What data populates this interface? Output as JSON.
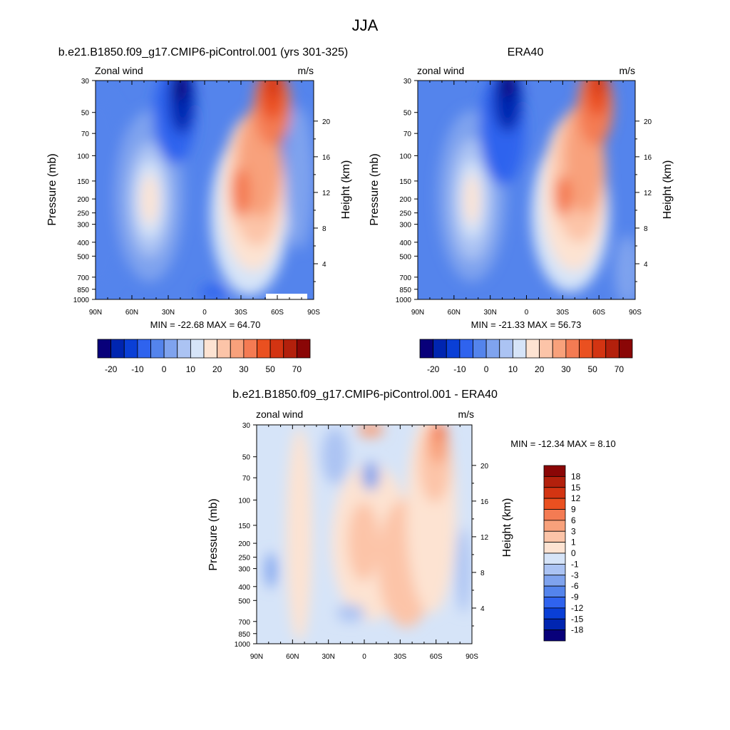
{
  "title": "JJA",
  "colors": {
    "main_levels": [
      "#08007a",
      "#0025b0",
      "#0a3fd6",
      "#2f63ee",
      "#5484ec",
      "#7fa3ee",
      "#abc3f3",
      "#d6e4f8",
      "#fde3d2",
      "#fcc4a8",
      "#f8a17b",
      "#f47b53",
      "#ea5020",
      "#d33412",
      "#b3200c",
      "#8a0606"
    ],
    "diff_levels": [
      "#08007a",
      "#0025b0",
      "#0a3fd6",
      "#2f63ee",
      "#5484ec",
      "#7fa3ee",
      "#abc3f3",
      "#d6e4f8",
      "#fde3d2",
      "#fcc4a8",
      "#f8a17b",
      "#f47b53",
      "#ea5020",
      "#d33412",
      "#b3200c",
      "#8a0606"
    ]
  },
  "panels": [
    {
      "id": "model",
      "title": "b.e21.B1850.f09_g17.CMIP6-piControl.001 (yrs 301-325)",
      "left_label": "Zonal wind",
      "right_label": "m/s",
      "ylabel": "Pressure (mb)",
      "ylabel_right": "Height (km)",
      "stats": "MIN = -22.68  MAX = 64.70"
    },
    {
      "id": "obs",
      "title": "ERA40",
      "left_label": "zonal wind",
      "right_label": "m/s",
      "ylabel": "Pressure (mb)",
      "ylabel_right": "Height (km)",
      "stats": "MIN = -21.33  MAX = 56.73"
    },
    {
      "id": "diff",
      "title": "b.e21.B1850.f09_g17.CMIP6-piControl.001 - ERA40",
      "left_label": "zonal wind",
      "right_label": "m/s",
      "ylabel": "Pressure (mb)",
      "ylabel_right": "Height (km)",
      "stats": "MIN = -12.34  MAX =   8.10"
    }
  ],
  "chart_data": [
    {
      "type": "heatmap",
      "name": "model",
      "xlabel": "",
      "ylabel": "Pressure (mb)",
      "x_ticks": [
        "90N",
        "60N",
        "30N",
        "0",
        "30S",
        "60S",
        "90S"
      ],
      "x_range": [
        90,
        -90
      ],
      "y_ticks": [
        30,
        50,
        70,
        100,
        150,
        200,
        250,
        300,
        400,
        500,
        700,
        850,
        1000
      ],
      "y_range": [
        1000,
        30
      ],
      "y2_ticks": [
        4,
        8,
        12,
        16,
        20
      ],
      "min": -22.68,
      "max": 64.7,
      "colorbar_labels": [
        "-20",
        "-10",
        "0",
        "10",
        "20",
        "30",
        "50",
        "70"
      ],
      "features": [
        {
          "kind": "westerly_jet",
          "lat": -40,
          "p": 200,
          "peak": 40
        },
        {
          "kind": "stratospheric_westerlies",
          "lat": -57,
          "p": 30,
          "peak": 64.7
        },
        {
          "kind": "nh_jet",
          "lat": 45,
          "p": 200,
          "peak": 22
        },
        {
          "kind": "easterlies",
          "lat": 20,
          "p": 30,
          "peak": -22.68
        }
      ]
    },
    {
      "type": "heatmap",
      "name": "obs",
      "ylabel": "Pressure (mb)",
      "x_ticks": [
        "90N",
        "60N",
        "30N",
        "0",
        "30S",
        "60S",
        "90S"
      ],
      "x_range": [
        90,
        -90
      ],
      "y_ticks": [
        30,
        50,
        70,
        100,
        150,
        200,
        250,
        300,
        400,
        500,
        700,
        850,
        1000
      ],
      "y_range": [
        1000,
        30
      ],
      "y2_ticks": [
        4,
        8,
        12,
        16,
        20
      ],
      "min": -21.33,
      "max": 56.73,
      "colorbar_labels": [
        "-20",
        "-10",
        "0",
        "10",
        "20",
        "30",
        "50",
        "70"
      ],
      "features": [
        {
          "kind": "westerly_jet",
          "lat": -30,
          "p": 200,
          "peak": 35
        },
        {
          "kind": "stratospheric_westerlies",
          "lat": -58,
          "p": 30,
          "peak": 56.73
        },
        {
          "kind": "nh_jet",
          "lat": 45,
          "p": 200,
          "peak": 20
        },
        {
          "kind": "easterlies",
          "lat": 15,
          "p": 30,
          "peak": -21.33
        }
      ]
    },
    {
      "type": "heatmap",
      "name": "difference",
      "ylabel": "Pressure (mb)",
      "x_ticks": [
        "90N",
        "60N",
        "30N",
        "0",
        "30S",
        "60S",
        "90S"
      ],
      "x_range": [
        90,
        -90
      ],
      "y_ticks": [
        30,
        50,
        70,
        100,
        150,
        200,
        250,
        300,
        400,
        500,
        700,
        850,
        1000
      ],
      "y_range": [
        1000,
        30
      ],
      "y2_ticks": [
        4,
        8,
        12,
        16,
        20
      ],
      "min": -12.34,
      "max": 8.1,
      "colorbar_labels": [
        "18",
        "15",
        "12",
        "9",
        "6",
        "3",
        "1",
        "0",
        "-1",
        "-3",
        "-6",
        "-9",
        "-12",
        "-15",
        "-18"
      ]
    }
  ]
}
